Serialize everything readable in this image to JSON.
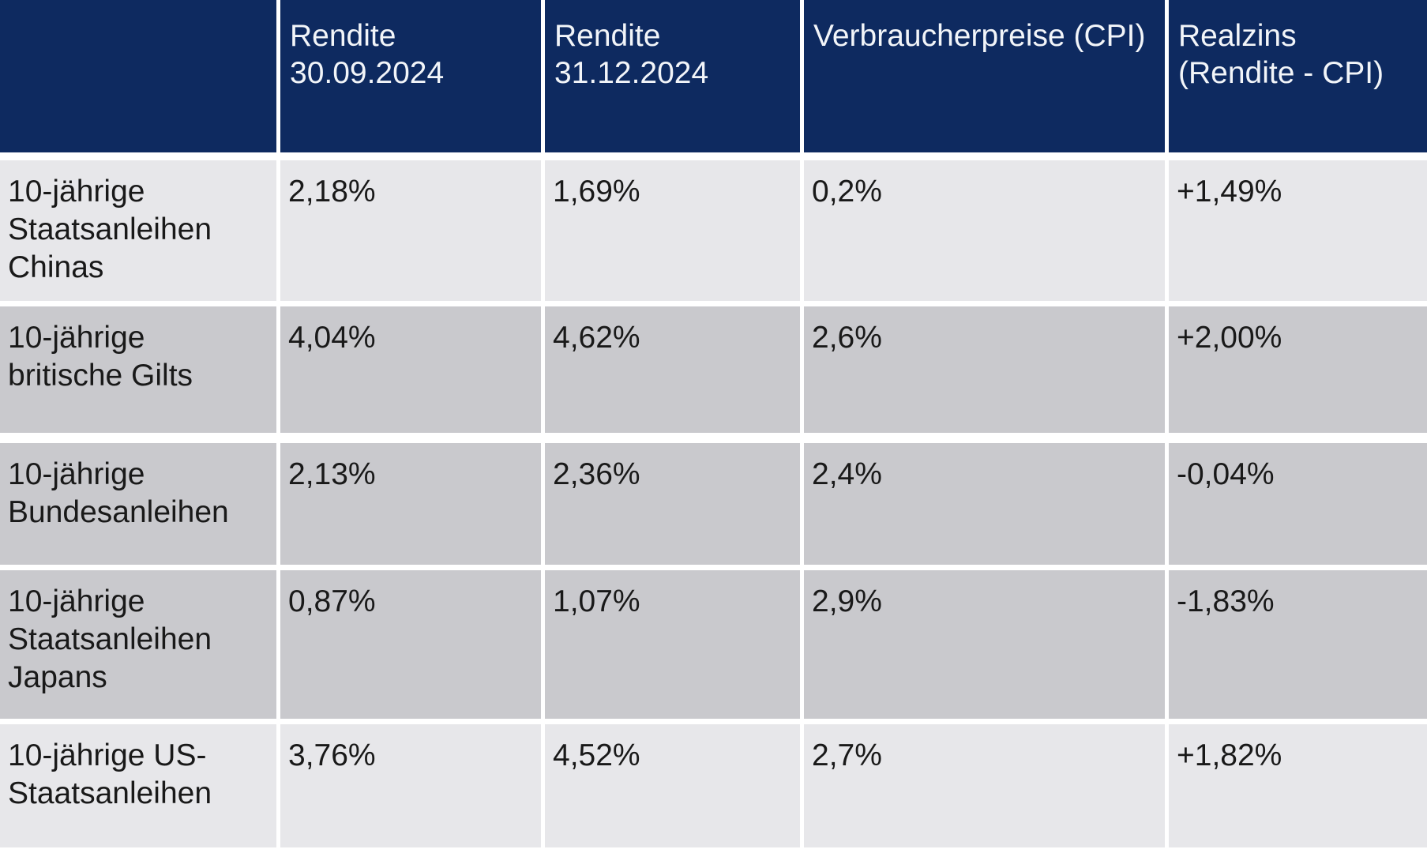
{
  "colors": {
    "header_bg": "#0E2A60",
    "header_text": "#F2F5F9",
    "row_light_bg": "#E7E7EA",
    "row_dark_bg": "#C9C9CD",
    "body_text": "#191919",
    "positive": "#18A45C",
    "negative": "#E01717",
    "separator": "#FFFFFF"
  },
  "table": {
    "header": {
      "col0": "",
      "col1": "Rendite 30.09.2024",
      "col2": "Rendite 31.12.2024",
      "col3": "Verbraucherpreise (CPI)",
      "col4": "Realzins (Rendite - CPI)"
    },
    "rows": [
      {
        "label": "10-jährige Staatsanleihen Chinas",
        "rendite_sep": "2,18%",
        "rendite_dec": "1,69%",
        "cpi": "0,2%",
        "realzins": "+1,49%",
        "trend": "positive",
        "shade": "light"
      },
      {
        "label": "10-jährige britische Gilts",
        "rendite_sep": "4,04%",
        "rendite_dec": "4,62%",
        "cpi": "2,6%",
        "realzins": "+2,00%",
        "trend": "positive",
        "shade": "dark"
      },
      {
        "label": "10-jährige Bundesanleihen",
        "rendite_sep": "2,13%",
        "rendite_dec": "2,36%",
        "cpi": "2,4%",
        "realzins": "-0,04%",
        "trend": "negative",
        "shade": "dark"
      },
      {
        "label": "10-jährige Staatsanleihen Japans",
        "rendite_sep": "0,87%",
        "rendite_dec": "1,07%",
        "cpi": "2,9%",
        "realzins": "-1,83%",
        "trend": "negative",
        "shade": "dark"
      },
      {
        "label": "10-jährige US-Staatsanleihen",
        "rendite_sep": "3,76%",
        "rendite_dec": "4,52%",
        "cpi": "2,7%",
        "realzins": "+1,82%",
        "trend": "positive",
        "shade": "light"
      }
    ]
  },
  "chart_data": {
    "type": "table",
    "title": "",
    "columns": [
      "",
      "Rendite 30.09.2024",
      "Rendite 31.12.2024",
      "Verbraucherpreise (CPI)",
      "Realzins (Rendite - CPI)"
    ],
    "rows": [
      [
        "10-jährige Staatsanleihen Chinas",
        "2,18%",
        "1,69%",
        "0,2%",
        "+1,49%"
      ],
      [
        "10-jährige britische Gilts",
        "4,04%",
        "4,62%",
        "2,6%",
        "+2,00%"
      ],
      [
        "10-jährige Bundesanleihen",
        "2,13%",
        "2,36%",
        "2,4%",
        "-0,04%"
      ],
      [
        "10-jährige Staatsanleihen Japans",
        "0,87%",
        "1,07%",
        "2,9%",
        "-1,83%"
      ],
      [
        "10-jährige US-Staatsanleihen",
        "3,76%",
        "4,52%",
        "2,7%",
        "+1,82%"
      ]
    ],
    "numeric_values": {
      "rendite_30_09_2024_pct": [
        2.18,
        4.04,
        2.13,
        0.87,
        3.76
      ],
      "rendite_31_12_2024_pct": [
        1.69,
        4.62,
        2.36,
        1.07,
        4.52
      ],
      "cpi_pct": [
        0.2,
        2.6,
        2.4,
        2.9,
        2.7
      ],
      "realzins_pct": [
        1.49,
        2.0,
        -0.04,
        -1.83,
        1.82
      ]
    }
  }
}
